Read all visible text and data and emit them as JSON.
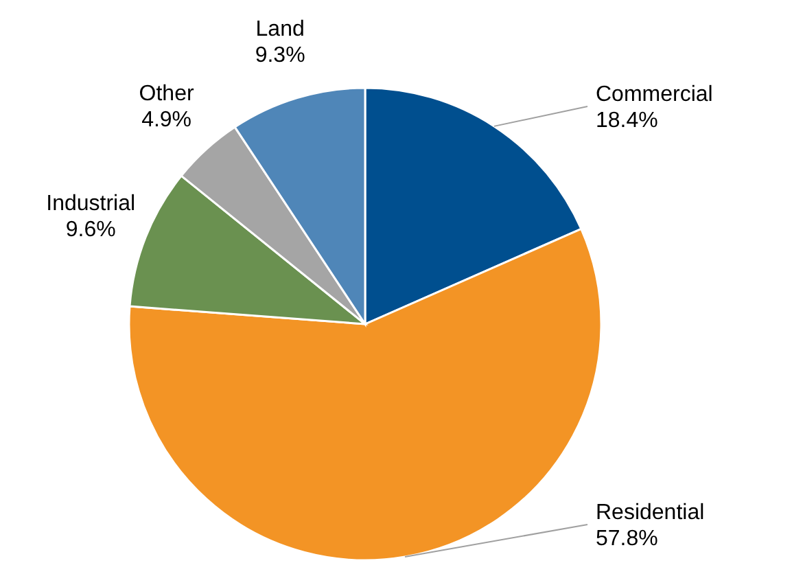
{
  "chart_data": {
    "type": "pie",
    "categories": [
      "Commercial",
      "Residential",
      "Industrial",
      "Other",
      "Land"
    ],
    "values": [
      18.4,
      57.8,
      9.6,
      4.9,
      9.3
    ],
    "colors": [
      "#004f8f",
      "#f39425",
      "#6a9150",
      "#a5a5a5",
      "#4f86b8"
    ],
    "value_labels": [
      "18.4%",
      "57.8%",
      "9.6%",
      "4.9%",
      "9.3%"
    ]
  }
}
